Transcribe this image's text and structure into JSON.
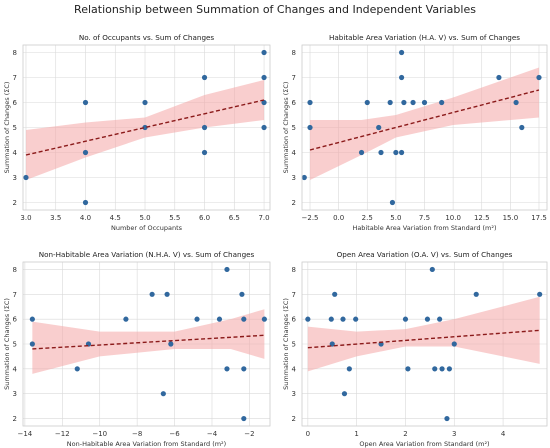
{
  "figure_title": "Relationship between Summation of Changes and Independent Variables",
  "colors": {
    "point": "#31689e",
    "trend": "#8b1a1a",
    "band": "#f4a6a6",
    "grid": "#d9d9d9",
    "frame": "#cccccc"
  },
  "chart_data": [
    {
      "type": "scatter",
      "title": "No. of Occupants vs. Sum of Changes",
      "xlabel": "Number of Occupants",
      "ylabel": "Summation of Changes (ΣC)",
      "xlim": [
        2.95,
        7.1
      ],
      "ylim": [
        1.7,
        8.3
      ],
      "xticks": [
        3.0,
        3.5,
        4.0,
        4.5,
        5.0,
        5.5,
        6.0,
        6.5,
        7.0
      ],
      "xtick_labels": [
        "3.0",
        "3.5",
        "4.0",
        "4.5",
        "5.0",
        "5.5",
        "6.0",
        "6.5",
        "7.0"
      ],
      "yticks": [
        2,
        3,
        4,
        5,
        6,
        7,
        8
      ],
      "ytick_labels": [
        "2",
        "3",
        "4",
        "5",
        "6",
        "7",
        "8"
      ],
      "grid": true,
      "points": [
        {
          "x": 3,
          "y": 3
        },
        {
          "x": 4,
          "y": 6
        },
        {
          "x": 4,
          "y": 4
        },
        {
          "x": 4,
          "y": 2
        },
        {
          "x": 5,
          "y": 6
        },
        {
          "x": 5,
          "y": 5
        },
        {
          "x": 6,
          "y": 7
        },
        {
          "x": 6,
          "y": 5
        },
        {
          "x": 6,
          "y": 4
        },
        {
          "x": 7,
          "y": 8
        },
        {
          "x": 7,
          "y": 7
        },
        {
          "x": 7,
          "y": 6
        },
        {
          "x": 7,
          "y": 5
        }
      ],
      "trend": {
        "x": [
          3.0,
          7.0
        ],
        "y": [
          3.9,
          6.1
        ]
      },
      "band": {
        "x": [
          3.0,
          4.0,
          5.0,
          6.0,
          7.0
        ],
        "upper": [
          4.9,
          5.2,
          5.4,
          6.3,
          6.9
        ],
        "lower": [
          2.9,
          3.8,
          4.6,
          5.0,
          5.3
        ]
      }
    },
    {
      "type": "scatter",
      "title": "Habitable Area Variation (H.A. V) vs. Sum of Changes",
      "xlabel": "Habitable Area Variation from Standard (m²)",
      "ylabel": "Summation of Changes (ΣC)",
      "xlim": [
        -3.2,
        18.2
      ],
      "ylim": [
        1.7,
        8.3
      ],
      "xticks": [
        -2.5,
        0.0,
        2.5,
        5.0,
        7.5,
        10.0,
        12.5,
        15.0,
        17.5
      ],
      "xtick_labels": [
        "−2.5",
        "0.0",
        "2.5",
        "5.0",
        "7.5",
        "10.0",
        "12.5",
        "15.0",
        "17.5"
      ],
      "yticks": [
        2,
        3,
        4,
        5,
        6,
        7,
        8
      ],
      "ytick_labels": [
        "2",
        "3",
        "4",
        "5",
        "6",
        "7",
        "8"
      ],
      "grid": true,
      "points": [
        {
          "x": -3.0,
          "y": 3
        },
        {
          "x": -2.5,
          "y": 6
        },
        {
          "x": -2.5,
          "y": 5
        },
        {
          "x": 2.0,
          "y": 4
        },
        {
          "x": 2.5,
          "y": 6
        },
        {
          "x": 3.5,
          "y": 5
        },
        {
          "x": 3.7,
          "y": 4
        },
        {
          "x": 4.5,
          "y": 6
        },
        {
          "x": 4.7,
          "y": 2
        },
        {
          "x": 5.0,
          "y": 4
        },
        {
          "x": 5.5,
          "y": 8
        },
        {
          "x": 5.5,
          "y": 7
        },
        {
          "x": 5.7,
          "y": 6
        },
        {
          "x": 5.5,
          "y": 4
        },
        {
          "x": 6.5,
          "y": 6
        },
        {
          "x": 7.5,
          "y": 6
        },
        {
          "x": 9.0,
          "y": 6
        },
        {
          "x": 14.0,
          "y": 7
        },
        {
          "x": 15.5,
          "y": 6
        },
        {
          "x": 16.0,
          "y": 5
        },
        {
          "x": 17.5,
          "y": 7
        }
      ],
      "trend": {
        "x": [
          -2.5,
          17.5
        ],
        "y": [
          4.1,
          6.5
        ]
      },
      "band": {
        "x": [
          -2.5,
          2.0,
          5.0,
          10.0,
          17.5
        ],
        "upper": [
          5.3,
          5.3,
          5.5,
          6.2,
          7.4
        ],
        "lower": [
          2.9,
          3.9,
          4.6,
          5.1,
          5.4
        ]
      }
    },
    {
      "type": "scatter",
      "title": "Non-Habitable Area Variation (N.H.A. V) vs. Sum of Changes",
      "xlabel": "Non-Habitable Area Variation from Standard (m²)",
      "ylabel": "Summation of Changes (ΣC)",
      "xlim": [
        -14.1,
        -0.9
      ],
      "ylim": [
        1.7,
        8.3
      ],
      "xticks": [
        -14,
        -12,
        -10,
        -8,
        -6,
        -4,
        -2
      ],
      "xtick_labels": [
        "−14",
        "−12",
        "−10",
        "−8",
        "−6",
        "−4",
        "−2"
      ],
      "yticks": [
        2,
        3,
        4,
        5,
        6,
        7,
        8
      ],
      "ytick_labels": [
        "2",
        "3",
        "4",
        "5",
        "6",
        "7",
        "8"
      ],
      "grid": true,
      "points": [
        {
          "x": -13.6,
          "y": 6
        },
        {
          "x": -13.6,
          "y": 5
        },
        {
          "x": -11.2,
          "y": 4
        },
        {
          "x": -10.6,
          "y": 5
        },
        {
          "x": -8.6,
          "y": 6
        },
        {
          "x": -7.2,
          "y": 7
        },
        {
          "x": -6.6,
          "y": 3
        },
        {
          "x": -6.4,
          "y": 7
        },
        {
          "x": -6.2,
          "y": 5
        },
        {
          "x": -4.8,
          "y": 6
        },
        {
          "x": -3.6,
          "y": 6
        },
        {
          "x": -3.2,
          "y": 8
        },
        {
          "x": -3.2,
          "y": 4
        },
        {
          "x": -2.4,
          "y": 7
        },
        {
          "x": -2.3,
          "y": 6
        },
        {
          "x": -2.3,
          "y": 4
        },
        {
          "x": -2.3,
          "y": 2
        },
        {
          "x": -1.2,
          "y": 6
        }
      ],
      "trend": {
        "x": [
          -13.6,
          -1.2
        ],
        "y": [
          4.8,
          5.35
        ]
      },
      "band": {
        "x": [
          -13.6,
          -10.0,
          -6.0,
          -3.0,
          -1.2
        ],
        "upper": [
          5.9,
          5.5,
          5.5,
          6.0,
          6.4
        ],
        "lower": [
          3.8,
          4.5,
          4.8,
          4.8,
          4.4
        ]
      }
    },
    {
      "type": "scatter",
      "title": "Open Area Variation (O.A. V) vs. Sum of Changes",
      "xlabel": "Open Area Variation from Standard (m²)",
      "ylabel": "Summation of Changes (ΣC)",
      "xlim": [
        -0.12,
        4.9
      ],
      "ylim": [
        1.7,
        8.3
      ],
      "xticks": [
        0,
        1,
        2,
        3,
        4
      ],
      "xtick_labels": [
        "0",
        "1",
        "2",
        "3",
        "4"
      ],
      "yticks": [
        2,
        3,
        4,
        5,
        6,
        7,
        8
      ],
      "ytick_labels": [
        "2",
        "3",
        "4",
        "5",
        "6",
        "7",
        "8"
      ],
      "grid": true,
      "points": [
        {
          "x": 0.0,
          "y": 6
        },
        {
          "x": 0.48,
          "y": 6
        },
        {
          "x": 0.5,
          "y": 5
        },
        {
          "x": 0.55,
          "y": 7
        },
        {
          "x": 0.72,
          "y": 6
        },
        {
          "x": 0.75,
          "y": 3
        },
        {
          "x": 0.85,
          "y": 4
        },
        {
          "x": 0.98,
          "y": 6
        },
        {
          "x": 1.5,
          "y": 5
        },
        {
          "x": 2.0,
          "y": 6
        },
        {
          "x": 2.05,
          "y": 4
        },
        {
          "x": 2.45,
          "y": 6
        },
        {
          "x": 2.55,
          "y": 8
        },
        {
          "x": 2.6,
          "y": 4
        },
        {
          "x": 2.7,
          "y": 6
        },
        {
          "x": 2.75,
          "y": 4
        },
        {
          "x": 2.85,
          "y": 2
        },
        {
          "x": 2.9,
          "y": 4
        },
        {
          "x": 3.0,
          "y": 5
        },
        {
          "x": 3.45,
          "y": 7
        },
        {
          "x": 4.75,
          "y": 7
        }
      ],
      "trend": {
        "x": [
          0.0,
          4.75
        ],
        "y": [
          4.85,
          5.55
        ]
      },
      "band": {
        "x": [
          0.0,
          1.0,
          2.0,
          3.0,
          4.75
        ],
        "upper": [
          5.7,
          5.5,
          5.6,
          6.0,
          6.9
        ],
        "lower": [
          3.9,
          4.5,
          4.9,
          4.9,
          4.2
        ]
      }
    }
  ]
}
